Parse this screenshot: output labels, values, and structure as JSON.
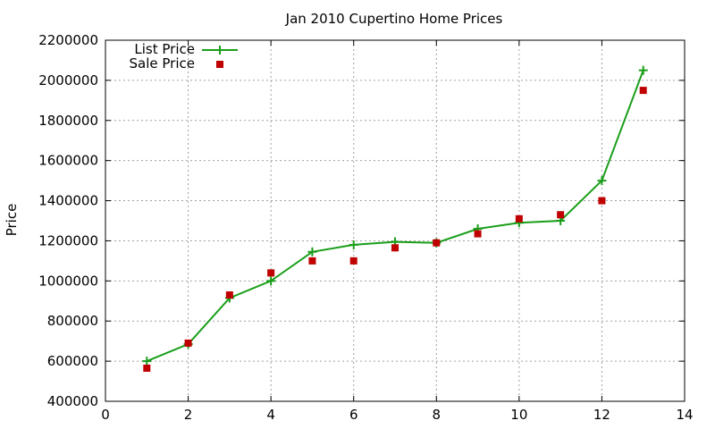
{
  "chart_data": {
    "type": "line",
    "title": "Jan 2010 Cupertino Home Prices",
    "xlabel": "",
    "ylabel": "Price",
    "xlim": [
      0,
      14
    ],
    "ylim": [
      400000,
      2200000
    ],
    "x_ticks": [
      "0",
      "2",
      "4",
      "6",
      "8",
      "10",
      "12",
      "14"
    ],
    "y_ticks": [
      "400000",
      "600000",
      "800000",
      "1000000",
      "1200000",
      "1400000",
      "1600000",
      "1800000",
      "2000000",
      "2200000"
    ],
    "grid": true,
    "legend_position": "top-left",
    "series": [
      {
        "name": "List Price",
        "style": "line-with-plus-markers",
        "color": "#1a9e1a",
        "x": [
          1,
          2,
          3,
          4,
          5,
          6,
          7,
          8,
          9,
          10,
          11,
          12,
          13
        ],
        "y": [
          600000,
          685000,
          915000,
          1000000,
          1145000,
          1180000,
          1195000,
          1190000,
          1260000,
          1290000,
          1300000,
          1500000,
          2050000
        ]
      },
      {
        "name": "Sale Price",
        "style": "square-markers",
        "color": "#c00000",
        "x": [
          1,
          2,
          3,
          4,
          5,
          6,
          7,
          8,
          9,
          10,
          11,
          12,
          13
        ],
        "y": [
          565000,
          690000,
          930000,
          1040000,
          1100000,
          1100000,
          1165000,
          1190000,
          1235000,
          1310000,
          1330000,
          1400000,
          1950000
        ]
      }
    ]
  }
}
